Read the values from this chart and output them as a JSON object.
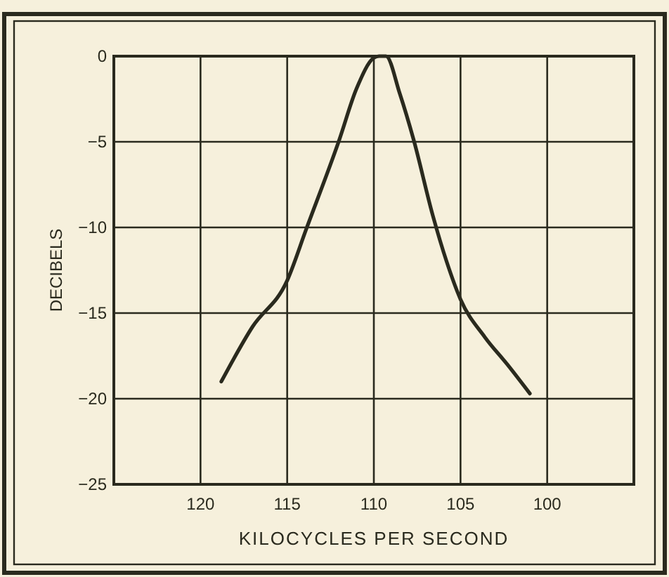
{
  "chart_data": {
    "type": "line",
    "xlabel": "KILOCYCLES PER SECOND",
    "ylabel": "DECIBELS",
    "xlim": [
      125,
      95
    ],
    "xticks": [
      120,
      115,
      110,
      105,
      100
    ],
    "ylim": [
      -25,
      0
    ],
    "yticks": [
      {
        "value": 0,
        "label": "0"
      },
      -5,
      -10,
      -15,
      -20,
      -25
    ],
    "grid": true,
    "series": [
      {
        "color": "#2a2a1e",
        "x": [
          118.8,
          117,
          115,
          113.9,
          112,
          111,
          110,
          109.7,
          109.3,
          108.5,
          107.7,
          106.6,
          105.8,
          105,
          103.6,
          102.3,
          101
        ],
        "values": [
          -19,
          -15.8,
          -13.1,
          -10.1,
          -4.9,
          -1.9,
          -0.1,
          0,
          0,
          -2.2,
          -4.9,
          -9.3,
          -12,
          -14.2,
          -16.4,
          -18,
          -19.7
        ]
      }
    ]
  }
}
